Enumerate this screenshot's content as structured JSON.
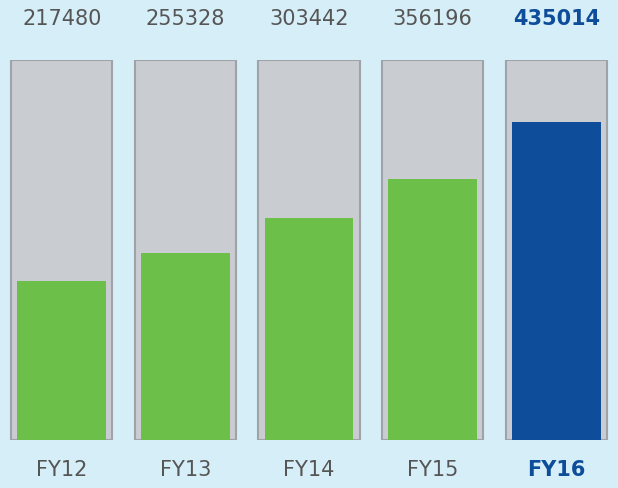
{
  "chart_data": {
    "type": "bar",
    "categories": [
      "FY12",
      "FY13",
      "FY14",
      "FY15",
      "FY16"
    ],
    "values": [
      217480,
      255328,
      303442,
      356196,
      435014
    ],
    "colors": [
      "#6cc04a",
      "#6cc04a",
      "#6cc04a",
      "#6cc04a",
      "#0d4d9a"
    ],
    "ylim": [
      0,
      520000
    ],
    "yticks": [],
    "tick_labels": "x",
    "data_labels": true,
    "grid": false
  }
}
